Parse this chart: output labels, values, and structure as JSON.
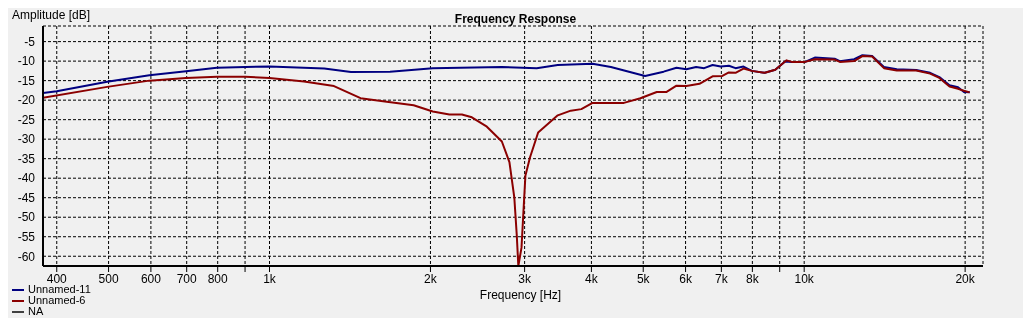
{
  "chart_data": {
    "type": "line",
    "title": "Frequency Response",
    "xlabel": "Frequency [Hz]",
    "ylabel": "Amplitude [dB]",
    "log": "x",
    "xlim": [
      377,
      21600
    ],
    "ylim": [
      -62.5,
      -1
    ],
    "xticks": [
      400,
      500,
      600,
      700,
      800,
      {
        "value": 900,
        "label": null
      },
      {
        "value": 1000,
        "label": "1k"
      },
      {
        "value": 2000,
        "label": "2k"
      },
      {
        "value": 3000,
        "label": "3k"
      },
      {
        "value": 4000,
        "label": "4k"
      },
      {
        "value": 5000,
        "label": "5k"
      },
      {
        "value": 6000,
        "label": "6k"
      },
      {
        "value": 7000,
        "label": "7k"
      },
      {
        "value": 8000,
        "label": "8k"
      },
      {
        "value": 9000,
        "label": null
      },
      {
        "value": 10000,
        "label": "10k"
      },
      {
        "value": 20000,
        "label": "20k"
      }
    ],
    "yticks": [
      -5,
      -10,
      -15,
      -20,
      -25,
      -30,
      -35,
      -40,
      -45,
      -50,
      -55,
      -60
    ],
    "grid": true,
    "legend": "bottom left",
    "line_style": "solid",
    "marker": "none",
    "series": [
      {
        "name": "Unnamed-11",
        "color": "#000080",
        "x": [
          377,
          400,
          497,
          596,
          698,
          797,
          901,
          1000,
          1266,
          1420,
          1680,
          2020,
          2720,
          3160,
          3460,
          4020,
          4350,
          5040,
          5460,
          5770,
          6020,
          6280,
          6500,
          6740,
          6980,
          7230,
          7440,
          7700,
          7980,
          8440,
          8830,
          9210,
          9480,
          10040,
          10470,
          11400,
          11660,
          12400,
          12850,
          13400,
          14100,
          14900,
          16200,
          17200,
          17900,
          18700,
          19400,
          19900,
          20400
        ],
        "values": [
          -18.2,
          -17.7,
          -15.3,
          -13.6,
          -12.6,
          -11.7,
          -11.5,
          -11.4,
          -11.9,
          -12.8,
          -12.7,
          -11.8,
          -11.5,
          -11.8,
          -11,
          -10.7,
          -11.5,
          -13.8,
          -12.7,
          -11.7,
          -12.1,
          -11.5,
          -11.8,
          -11,
          -11.4,
          -11.2,
          -11.8,
          -11.4,
          -12.5,
          -13,
          -12.2,
          -10.1,
          -10.2,
          -10.2,
          -9.1,
          -9.4,
          -10,
          -9.5,
          -8.5,
          -8.7,
          -11.5,
          -12.1,
          -12.3,
          -13,
          -14.1,
          -16.2,
          -16.7,
          -17.9,
          -18
        ]
      },
      {
        "name": "Unnamed-6",
        "color": "#8b0000",
        "x": [
          377,
          497,
          596,
          698,
          797,
          901,
          1000,
          1160,
          1320,
          1480,
          1630,
          1860,
          2020,
          2170,
          2290,
          2390,
          2550,
          2720,
          2810,
          2870,
          2900,
          2920,
          2960,
          3010,
          3070,
          3180,
          3460,
          3660,
          3830,
          4020,
          4600,
          4940,
          5300,
          5530,
          5770,
          6020,
          6370,
          6740,
          7030,
          7230,
          7440,
          7700,
          7980,
          8440,
          8830,
          9270,
          9480,
          10040,
          10470,
          11400,
          11660,
          12400,
          12850,
          13400,
          14100,
          14900,
          16200,
          17200,
          17900,
          18700,
          19400,
          19900,
          20400
        ],
        "values": [
          -19.4,
          -16.6,
          -15,
          -14.3,
          -14,
          -14,
          -14.3,
          -15.2,
          -16.4,
          -19.5,
          -20.3,
          -21.3,
          -22.9,
          -23.7,
          -23.7,
          -24.4,
          -26.8,
          -30.6,
          -35.9,
          -45,
          -54.5,
          -62.5,
          -57.8,
          -39.4,
          -34.7,
          -28.3,
          -23.9,
          -22.7,
          -22.3,
          -20.7,
          -20.7,
          -19.5,
          -17.9,
          -17.9,
          -16.3,
          -16.4,
          -15.8,
          -13.9,
          -13.8,
          -12.9,
          -13,
          -11.9,
          -12.5,
          -13,
          -12.2,
          -9.8,
          -10.2,
          -10.2,
          -9.5,
          -9.6,
          -10.2,
          -10,
          -8.7,
          -8.8,
          -11.8,
          -12.4,
          -12.4,
          -13.2,
          -14.3,
          -16.5,
          -17.1,
          -17.6,
          -18
        ]
      },
      {
        "name": "NA",
        "color": "#404040"
      }
    ]
  }
}
